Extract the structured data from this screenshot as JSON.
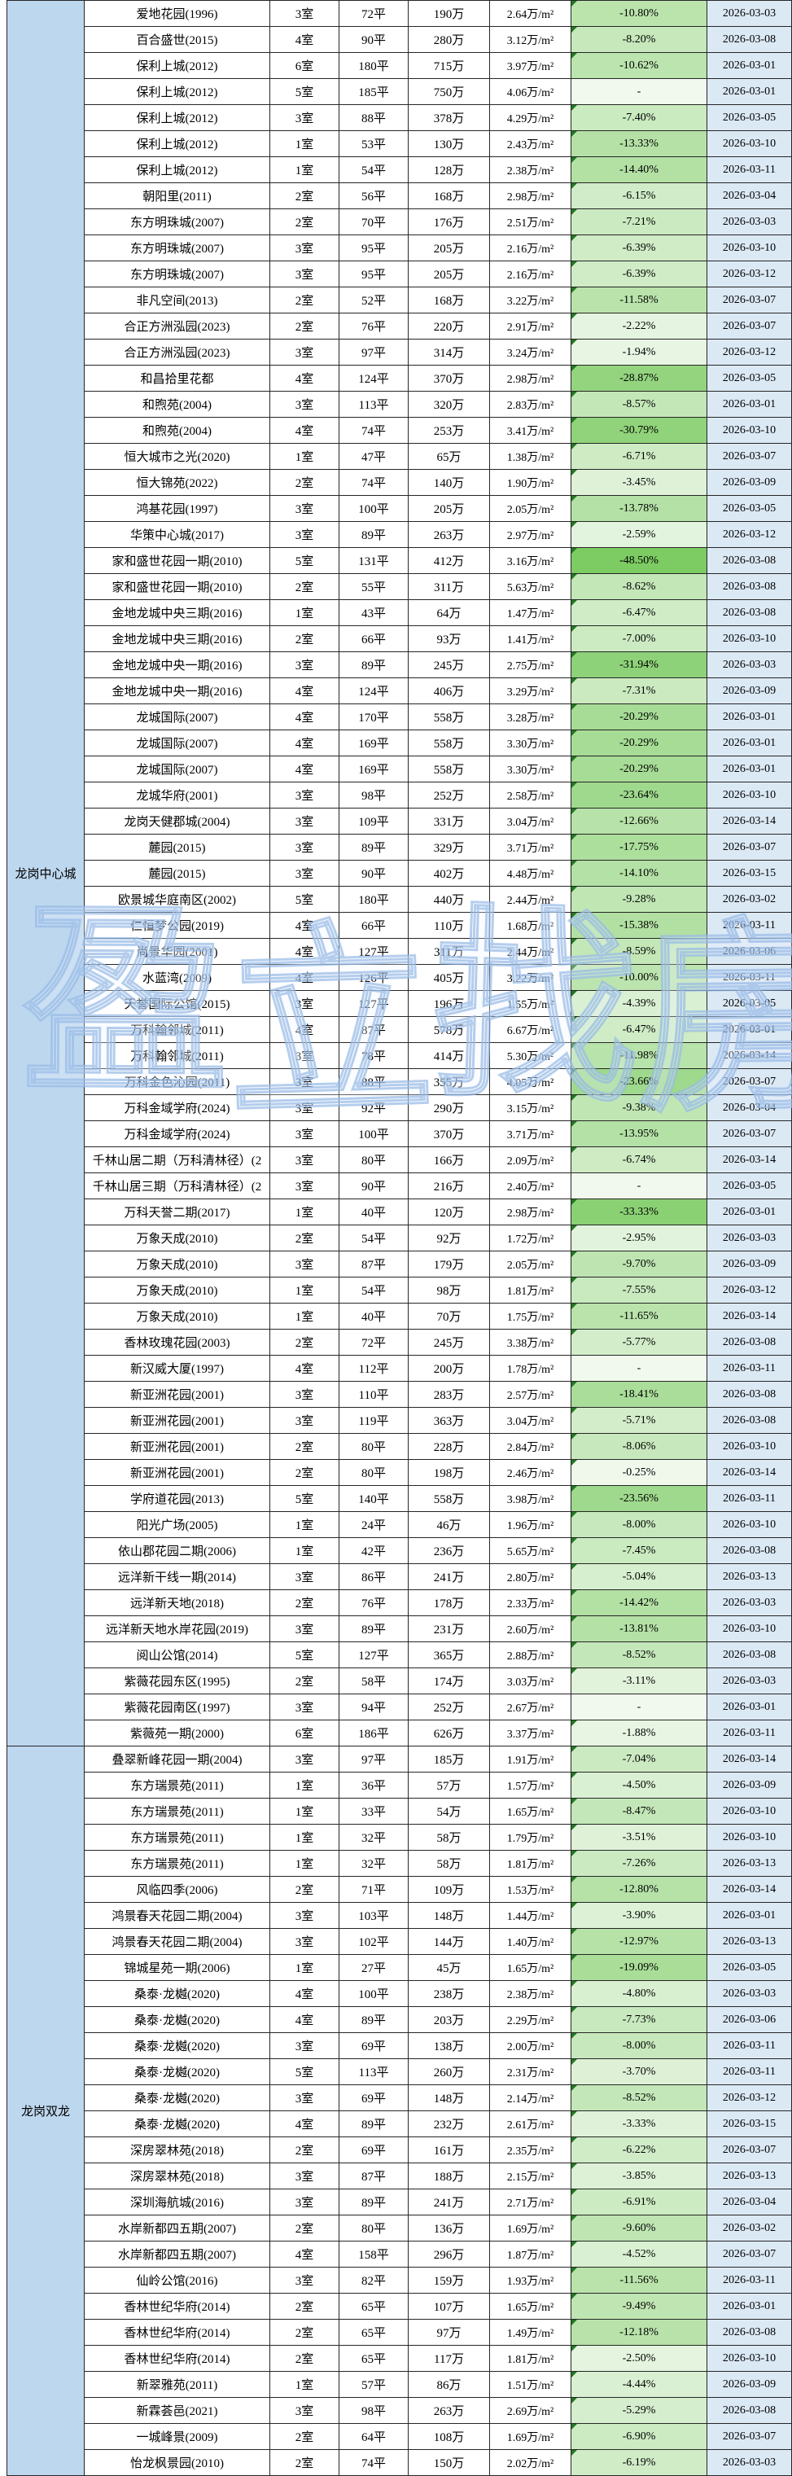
{
  "colors": {
    "region_bg": "#BDD7EE",
    "date_bg": "#DBE9F5",
    "pct_pale": "#F1F9EE",
    "pct_strong": "#7CCB63",
    "triangle": "#217A21",
    "border": "#262626",
    "watermark_blue": "#96B9E6"
  },
  "watermark": {
    "text": "盈立找房"
  },
  "table": {
    "regions": [
      {
        "label": "龙岗中心城",
        "rows": [
          [
            "爱地花园(1996)",
            "3室",
            "72平",
            "190万",
            "2.64万/m²",
            "-10.80%",
            "2026-03-03"
          ],
          [
            "百合盛世(2015)",
            "4室",
            "90平",
            "280万",
            "3.12万/m²",
            "-8.20%",
            "2026-03-08"
          ],
          [
            "保利上城(2012)",
            "6室",
            "180平",
            "715万",
            "3.97万/m²",
            "-10.62%",
            "2026-03-01"
          ],
          [
            "保利上城(2012)",
            "5室",
            "185平",
            "750万",
            "4.06万/m²",
            "-",
            "2026-03-01"
          ],
          [
            "保利上城(2012)",
            "3室",
            "88平",
            "378万",
            "4.29万/m²",
            "-7.40%",
            "2026-03-05"
          ],
          [
            "保利上城(2012)",
            "1室",
            "53平",
            "130万",
            "2.43万/m²",
            "-13.33%",
            "2026-03-10"
          ],
          [
            "保利上城(2012)",
            "1室",
            "54平",
            "128万",
            "2.38万/m²",
            "-14.40%",
            "2026-03-11"
          ],
          [
            "朝阳里(2011)",
            "2室",
            "56平",
            "168万",
            "2.98万/m²",
            "-6.15%",
            "2026-03-04"
          ],
          [
            "东方明珠城(2007)",
            "2室",
            "70平",
            "176万",
            "2.51万/m²",
            "-7.21%",
            "2026-03-03"
          ],
          [
            "东方明珠城(2007)",
            "3室",
            "95平",
            "205万",
            "2.16万/m²",
            "-6.39%",
            "2026-03-10"
          ],
          [
            "东方明珠城(2007)",
            "3室",
            "95平",
            "205万",
            "2.16万/m²",
            "-6.39%",
            "2026-03-12"
          ],
          [
            "非凡空间(2013)",
            "2室",
            "52平",
            "168万",
            "3.22万/m²",
            "-11.58%",
            "2026-03-07"
          ],
          [
            "合正方洲泓园(2023)",
            "2室",
            "76平",
            "220万",
            "2.91万/m²",
            "-2.22%",
            "2026-03-07"
          ],
          [
            "合正方洲泓园(2023)",
            "3室",
            "97平",
            "314万",
            "3.24万/m²",
            "-1.94%",
            "2026-03-12"
          ],
          [
            "和昌拾里花都",
            "4室",
            "124平",
            "370万",
            "2.98万/m²",
            "-28.87%",
            "2026-03-05"
          ],
          [
            "和煦苑(2004)",
            "3室",
            "113平",
            "320万",
            "2.83万/m²",
            "-8.57%",
            "2026-03-01"
          ],
          [
            "和煦苑(2004)",
            "4室",
            "74平",
            "253万",
            "3.41万/m²",
            "-30.79%",
            "2026-03-10"
          ],
          [
            "恒大城市之光(2020)",
            "1室",
            "47平",
            "65万",
            "1.38万/m²",
            "-6.71%",
            "2026-03-07"
          ],
          [
            "恒大锦苑(2022)",
            "2室",
            "74平",
            "140万",
            "1.90万/m²",
            "-3.45%",
            "2026-03-09"
          ],
          [
            "鸿基花园(1997)",
            "3室",
            "100平",
            "205万",
            "2.05万/m²",
            "-13.78%",
            "2026-03-05"
          ],
          [
            "华策中心城(2017)",
            "3室",
            "89平",
            "263万",
            "2.97万/m²",
            "-2.59%",
            "2026-03-12"
          ],
          [
            "家和盛世花园一期(2010)",
            "5室",
            "131平",
            "412万",
            "3.16万/m²",
            "-48.50%",
            "2026-03-08"
          ],
          [
            "家和盛世花园一期(2010)",
            "2室",
            "55平",
            "311万",
            "5.63万/m²",
            "-8.62%",
            "2026-03-08"
          ],
          [
            "金地龙城中央三期(2016)",
            "1室",
            "43平",
            "64万",
            "1.47万/m²",
            "-6.47%",
            "2026-03-08"
          ],
          [
            "金地龙城中央三期(2016)",
            "2室",
            "66平",
            "93万",
            "1.41万/m²",
            "-7.00%",
            "2026-03-10"
          ],
          [
            "金地龙城中央一期(2016)",
            "3室",
            "89平",
            "245万",
            "2.75万/m²",
            "-31.94%",
            "2026-03-03"
          ],
          [
            "金地龙城中央一期(2016)",
            "4室",
            "124平",
            "406万",
            "3.29万/m²",
            "-7.31%",
            "2026-03-09"
          ],
          [
            "龙城国际(2007)",
            "4室",
            "170平",
            "558万",
            "3.28万/m²",
            "-20.29%",
            "2026-03-01"
          ],
          [
            "龙城国际(2007)",
            "4室",
            "169平",
            "558万",
            "3.30万/m²",
            "-20.29%",
            "2026-03-01"
          ],
          [
            "龙城国际(2007)",
            "4室",
            "169平",
            "558万",
            "3.30万/m²",
            "-20.29%",
            "2026-03-01"
          ],
          [
            "龙城华府(2001)",
            "3室",
            "98平",
            "252万",
            "2.58万/m²",
            "-23.64%",
            "2026-03-10"
          ],
          [
            "龙岗天健郡城(2004)",
            "3室",
            "109平",
            "331万",
            "3.04万/m²",
            "-12.66%",
            "2026-03-14"
          ],
          [
            "麓园(2015)",
            "3室",
            "89平",
            "329万",
            "3.71万/m²",
            "-17.75%",
            "2026-03-07"
          ],
          [
            "麓园(2015)",
            "3室",
            "90平",
            "402万",
            "4.48万/m²",
            "-14.10%",
            "2026-03-15"
          ],
          [
            "欧景城华庭南区(2002)",
            "5室",
            "180平",
            "440万",
            "2.44万/m²",
            "-9.28%",
            "2026-03-02"
          ],
          [
            "仁恒梦公园(2019)",
            "4室",
            "66平",
            "110万",
            "1.68万/m²",
            "-15.38%",
            "2026-03-11"
          ],
          [
            "尚景华园(2001)",
            "4室",
            "127平",
            "311万",
            "2.44万/m²",
            "-8.59%",
            "2026-03-06"
          ],
          [
            "水蓝湾(2009)",
            "4室",
            "126平",
            "405万",
            "3.22万/m²",
            "-10.00%",
            "2026-03-11"
          ],
          [
            "天誉国际公馆(2015)",
            "3室",
            "127平",
            "196万",
            "1.55万/m²",
            "-4.39%",
            "2026-03-05"
          ],
          [
            "万科翰邻城(2011)",
            "4室",
            "87平",
            "578万",
            "6.67万/m²",
            "-6.47%",
            "2026-03-01"
          ],
          [
            "万科翰邻城(2011)",
            "3室",
            "78平",
            "414万",
            "5.30万/m²",
            "-11.98%",
            "2026-03-14"
          ],
          [
            "万科金色沁园(2011)",
            "3室",
            "88平",
            "355万",
            "4.05万/m²",
            "-23.66%",
            "2026-03-07"
          ],
          [
            "万科金域学府(2024)",
            "3室",
            "92平",
            "290万",
            "3.15万/m²",
            "-9.38%",
            "2026-03-04"
          ],
          [
            "万科金域学府(2024)",
            "3室",
            "100平",
            "370万",
            "3.71万/m²",
            "-13.95%",
            "2026-03-07"
          ],
          [
            "千林山居二期（万科清林径）(2",
            "3室",
            "80平",
            "166万",
            "2.09万/m²",
            "-6.74%",
            "2026-03-14"
          ],
          [
            "千林山居三期（万科清林径）(2",
            "3室",
            "90平",
            "216万",
            "2.40万/m²",
            "-",
            "2026-03-05"
          ],
          [
            "万科天誉二期(2017)",
            "1室",
            "40平",
            "120万",
            "2.98万/m²",
            "-33.33%",
            "2026-03-01"
          ],
          [
            "万象天成(2010)",
            "2室",
            "54平",
            "92万",
            "1.72万/m²",
            "-2.95%",
            "2026-03-03"
          ],
          [
            "万象天成(2010)",
            "3室",
            "87平",
            "179万",
            "2.05万/m²",
            "-9.70%",
            "2026-03-09"
          ],
          [
            "万象天成(2010)",
            "1室",
            "54平",
            "98万",
            "1.81万/m²",
            "-7.55%",
            "2026-03-12"
          ],
          [
            "万象天成(2010)",
            "1室",
            "40平",
            "70万",
            "1.75万/m²",
            "-11.65%",
            "2026-03-14"
          ],
          [
            "香林玫瑰花园(2003)",
            "2室",
            "72平",
            "245万",
            "3.38万/m²",
            "-5.77%",
            "2026-03-08"
          ],
          [
            "新汉威大厦(1997)",
            "4室",
            "112平",
            "200万",
            "1.78万/m²",
            "-",
            "2026-03-11"
          ],
          [
            "新亚洲花园(2001)",
            "3室",
            "110平",
            "283万",
            "2.57万/m²",
            "-18.41%",
            "2026-03-08"
          ],
          [
            "新亚洲花园(2001)",
            "3室",
            "119平",
            "363万",
            "3.04万/m²",
            "-5.71%",
            "2026-03-08"
          ],
          [
            "新亚洲花园(2001)",
            "2室",
            "80平",
            "228万",
            "2.84万/m²",
            "-8.06%",
            "2026-03-10"
          ],
          [
            "新亚洲花园(2001)",
            "2室",
            "80平",
            "198万",
            "2.46万/m²",
            "-0.25%",
            "2026-03-14"
          ],
          [
            "学府道花园(2013)",
            "5室",
            "140平",
            "558万",
            "3.98万/m²",
            "-23.56%",
            "2026-03-11"
          ],
          [
            "阳光广场(2005)",
            "1室",
            "24平",
            "46万",
            "1.96万/m²",
            "-8.00%",
            "2026-03-10"
          ],
          [
            "依山郡花园二期(2006)",
            "1室",
            "42平",
            "236万",
            "5.65万/m²",
            "-7.45%",
            "2026-03-08"
          ],
          [
            "远洋新干线一期(2014)",
            "3室",
            "86平",
            "241万",
            "2.80万/m²",
            "-5.04%",
            "2026-03-13"
          ],
          [
            "远洋新天地(2018)",
            "2室",
            "76平",
            "178万",
            "2.33万/m²",
            "-14.42%",
            "2026-03-03"
          ],
          [
            "远洋新天地水岸花园(2019)",
            "3室",
            "89平",
            "231万",
            "2.60万/m²",
            "-13.81%",
            "2026-03-10"
          ],
          [
            "阅山公馆(2014)",
            "5室",
            "127平",
            "365万",
            "2.88万/m²",
            "-8.52%",
            "2026-03-08"
          ],
          [
            "紫薇花园东区(1995)",
            "2室",
            "58平",
            "174万",
            "3.03万/m²",
            "-3.11%",
            "2026-03-03"
          ],
          [
            "紫薇花园南区(1997)",
            "3室",
            "94平",
            "252万",
            "2.67万/m²",
            "-",
            "2026-03-01"
          ],
          [
            "紫薇苑一期(2000)",
            "6室",
            "186平",
            "626万",
            "3.37万/m²",
            "-1.88%",
            "2026-03-11"
          ]
        ]
      },
      {
        "label": "龙岗双龙",
        "rows": [
          [
            "叠翠新峰花园一期(2004)",
            "3室",
            "97平",
            "185万",
            "1.91万/m²",
            "-7.04%",
            "2026-03-14"
          ],
          [
            "东方瑞景苑(2011)",
            "1室",
            "36平",
            "57万",
            "1.57万/m²",
            "-4.50%",
            "2026-03-09"
          ],
          [
            "东方瑞景苑(2011)",
            "1室",
            "33平",
            "54万",
            "1.65万/m²",
            "-8.47%",
            "2026-03-10"
          ],
          [
            "东方瑞景苑(2011)",
            "1室",
            "32平",
            "58万",
            "1.79万/m²",
            "-3.51%",
            "2026-03-10"
          ],
          [
            "东方瑞景苑(2011)",
            "1室",
            "32平",
            "58万",
            "1.81万/m²",
            "-7.26%",
            "2026-03-13"
          ],
          [
            "风临四季(2006)",
            "2室",
            "71平",
            "109万",
            "1.53万/m²",
            "-12.80%",
            "2026-03-14"
          ],
          [
            "鸿景春天花园二期(2004)",
            "3室",
            "103平",
            "148万",
            "1.44万/m²",
            "-3.90%",
            "2026-03-01"
          ],
          [
            "鸿景春天花园二期(2004)",
            "3室",
            "102平",
            "144万",
            "1.40万/m²",
            "-12.97%",
            "2026-03-13"
          ],
          [
            "锦城星苑一期(2006)",
            "1室",
            "27平",
            "45万",
            "1.65万/m²",
            "-19.09%",
            "2026-03-05"
          ],
          [
            "桑泰·龙樾(2020)",
            "4室",
            "100平",
            "238万",
            "2.38万/m²",
            "-4.80%",
            "2026-03-03"
          ],
          [
            "桑泰·龙樾(2020)",
            "4室",
            "89平",
            "203万",
            "2.29万/m²",
            "-7.73%",
            "2026-03-06"
          ],
          [
            "桑泰·龙樾(2020)",
            "3室",
            "69平",
            "138万",
            "2.00万/m²",
            "-8.00%",
            "2026-03-11"
          ],
          [
            "桑泰·龙樾(2020)",
            "5室",
            "113平",
            "260万",
            "2.31万/m²",
            "-3.70%",
            "2026-03-11"
          ],
          [
            "桑泰·龙樾(2020)",
            "3室",
            "69平",
            "148万",
            "2.14万/m²",
            "-8.52%",
            "2026-03-12"
          ],
          [
            "桑泰·龙樾(2020)",
            "4室",
            "89平",
            "232万",
            "2.61万/m²",
            "-3.33%",
            "2026-03-15"
          ],
          [
            "深房翠林苑(2018)",
            "2室",
            "69平",
            "161万",
            "2.35万/m²",
            "-6.22%",
            "2026-03-07"
          ],
          [
            "深房翠林苑(2018)",
            "3室",
            "87平",
            "188万",
            "2.15万/m²",
            "-3.85%",
            "2026-03-13"
          ],
          [
            "深圳海航城(2016)",
            "3室",
            "89平",
            "241万",
            "2.71万/m²",
            "-6.91%",
            "2026-03-04"
          ],
          [
            "水岸新都四五期(2007)",
            "2室",
            "80平",
            "136万",
            "1.69万/m²",
            "-9.60%",
            "2026-03-02"
          ],
          [
            "水岸新都四五期(2007)",
            "4室",
            "158平",
            "296万",
            "1.87万/m²",
            "-4.52%",
            "2026-03-07"
          ],
          [
            "仙岭公馆(2016)",
            "3室",
            "82平",
            "159万",
            "1.93万/m²",
            "-11.56%",
            "2026-03-11"
          ],
          [
            "香林世纪华府(2014)",
            "2室",
            "65平",
            "107万",
            "1.65万/m²",
            "-9.49%",
            "2026-03-01"
          ],
          [
            "香林世纪华府(2014)",
            "2室",
            "65平",
            "97万",
            "1.49万/m²",
            "-12.18%",
            "2026-03-08"
          ],
          [
            "香林世纪华府(2014)",
            "2室",
            "65平",
            "117万",
            "1.81万/m²",
            "-2.50%",
            "2026-03-10"
          ],
          [
            "新翠雅苑(2011)",
            "1室",
            "57平",
            "86万",
            "1.51万/m²",
            "-4.44%",
            "2026-03-09"
          ],
          [
            "新霖荟邑(2021)",
            "3室",
            "98平",
            "263万",
            "2.69万/m²",
            "-5.29%",
            "2026-03-08"
          ],
          [
            "一城峰景(2009)",
            "2室",
            "64平",
            "108万",
            "1.69万/m²",
            "-6.90%",
            "2026-03-07"
          ],
          [
            "怡龙枫景园(2010)",
            "2室",
            "74平",
            "150万",
            "2.02万/m²",
            "-6.19%",
            "2026-03-03"
          ]
        ]
      }
    ]
  }
}
